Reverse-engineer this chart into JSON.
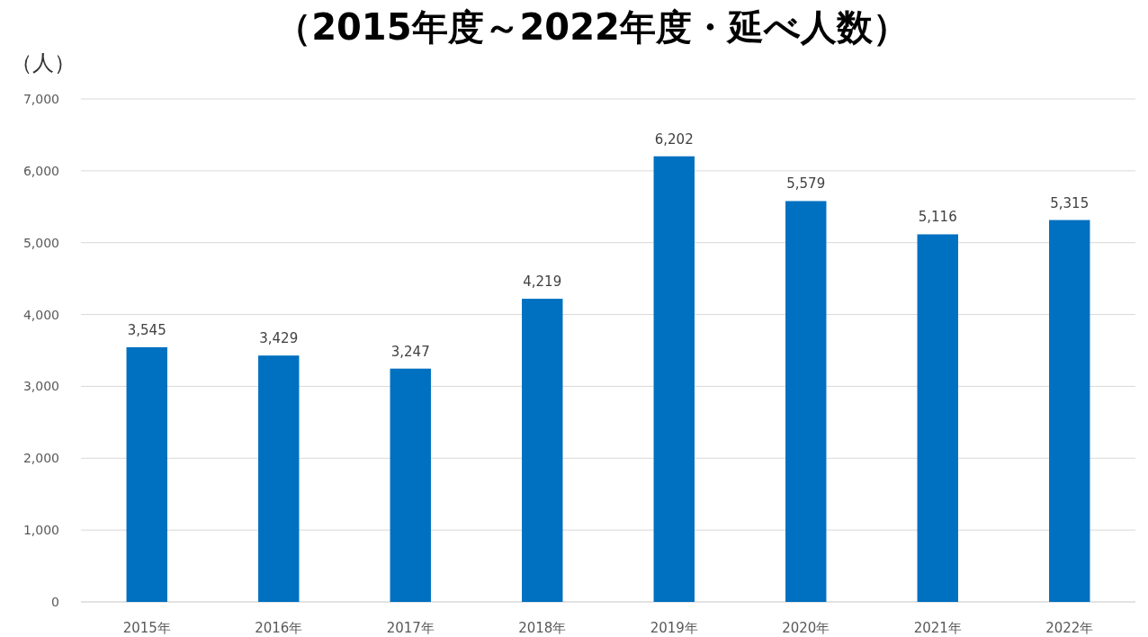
{
  "chart_data": {
    "type": "bar",
    "title": "（2015年度～2022年度・延べ人数）",
    "ylabel": "（人）",
    "categories": [
      "2015年",
      "2016年",
      "2017年",
      "2018年",
      "2019年",
      "2020年",
      "2021年",
      "2022年"
    ],
    "values": [
      3545,
      3429,
      3247,
      4219,
      6202,
      5579,
      5116,
      5315
    ],
    "value_labels": [
      "3,545",
      "3,429",
      "3,247",
      "4,219",
      "6,202",
      "5,579",
      "5,116",
      "5,315"
    ],
    "color": "#0070c0",
    "ylim": [
      0,
      7000
    ],
    "yticks": [
      {
        "value": 0,
        "label": "0"
      },
      {
        "value": 1000,
        "label": "1,000"
      },
      {
        "value": 2000,
        "label": "2,000"
      },
      {
        "value": 3000,
        "label": "3,000"
      },
      {
        "value": 4000,
        "label": "4,000"
      },
      {
        "value": 5000,
        "label": "5,000"
      },
      {
        "value": 6000,
        "label": "6,000"
      },
      {
        "value": 7000,
        "label": "7,000"
      }
    ],
    "grid": "y"
  }
}
